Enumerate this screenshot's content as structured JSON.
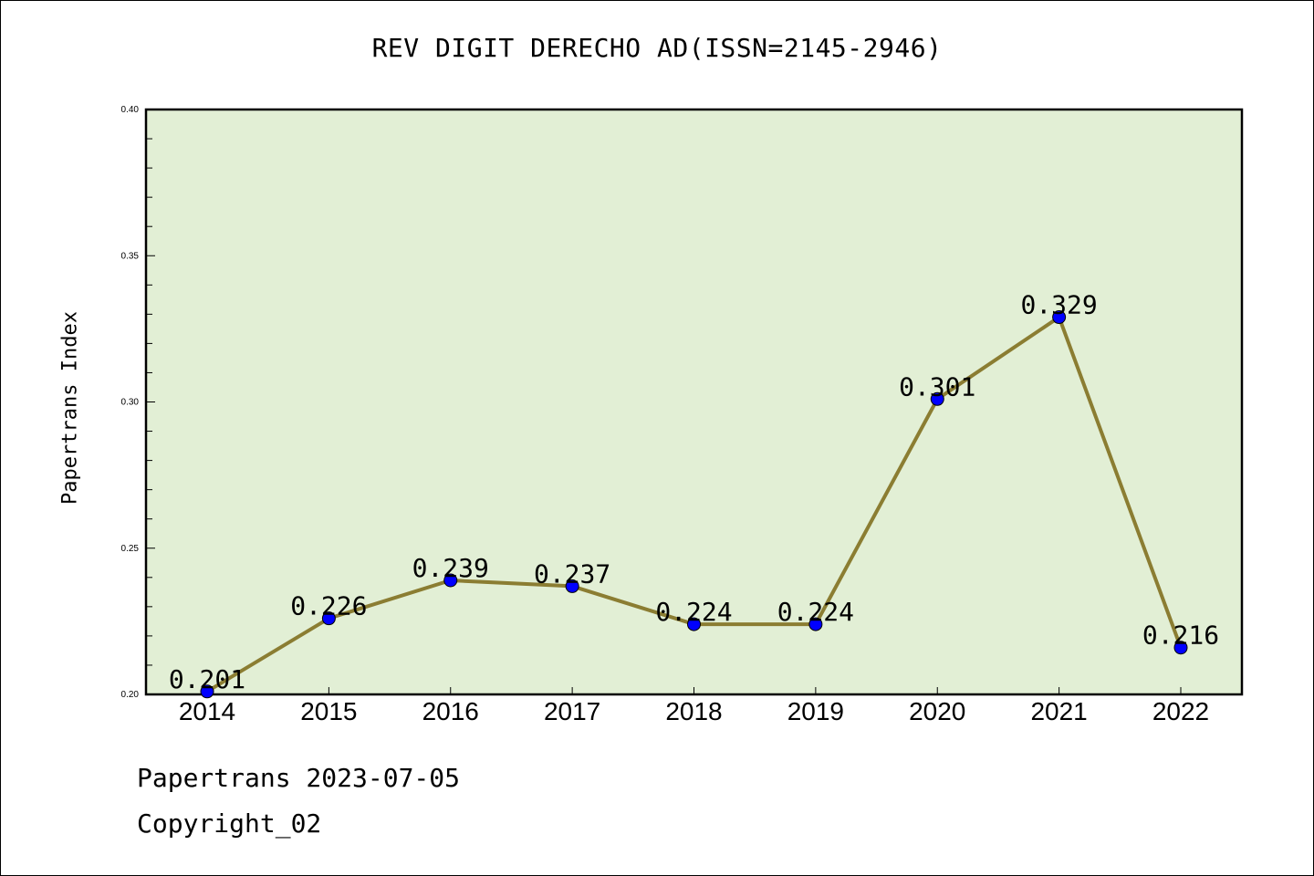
{
  "chart_data": {
    "type": "line",
    "title": "REV DIGIT DERECHO AD(ISSN=2145-2946)",
    "xlabel": "",
    "ylabel": "Papertrans Index",
    "categories": [
      "2014",
      "2015",
      "2016",
      "2017",
      "2018",
      "2019",
      "2020",
      "2021",
      "2022"
    ],
    "series": [
      {
        "values": [
          0.201,
          0.226,
          0.239,
          0.237,
          0.224,
          0.224,
          0.301,
          0.329,
          0.216
        ],
        "labels": [
          "0.201",
          "0.226",
          "0.239",
          "0.237",
          "0.224",
          "0.224",
          "0.301",
          "0.329",
          "0.216"
        ]
      }
    ],
    "ylim": [
      0.2,
      0.4
    ],
    "yticks": [
      "0.20",
      "0.25",
      "0.30",
      "0.35",
      "0.40"
    ],
    "grid": false,
    "colors": {
      "plot_background": "#e2efd5",
      "line": "#8b7d32",
      "marker": "#0000ff"
    }
  },
  "footer": {
    "line1": "Papertrans 2023-07-05",
    "line2": "Copyright_02"
  }
}
